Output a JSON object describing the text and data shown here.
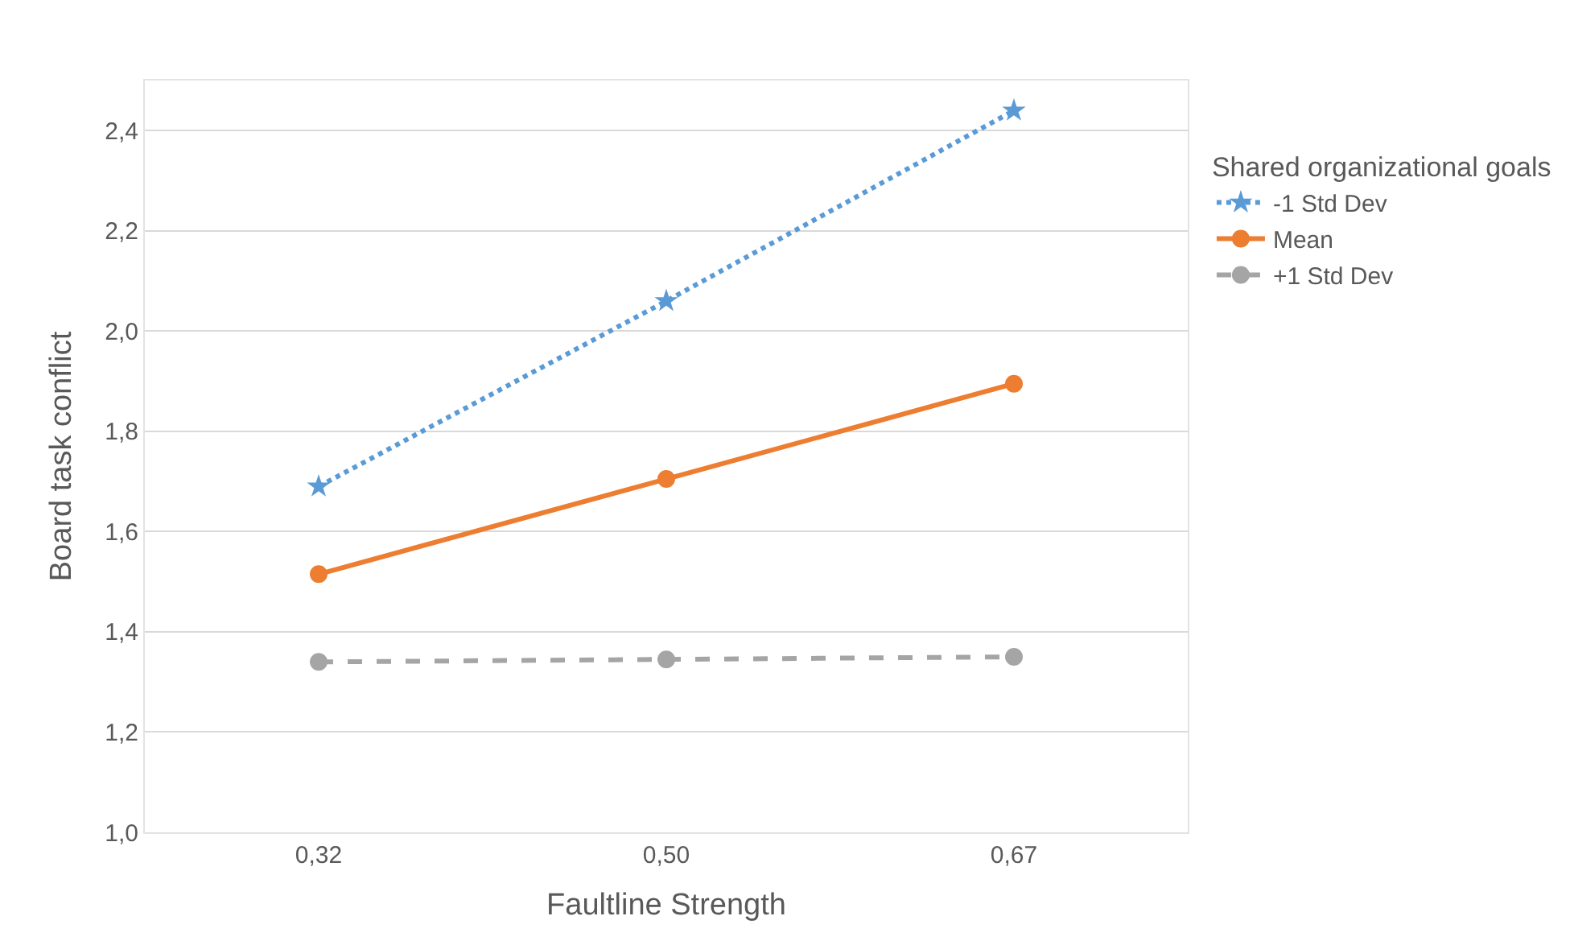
{
  "chart_data": {
    "type": "line",
    "xlabel": "Faultline Strength",
    "ylabel": "Board task conflict",
    "legend_title": "Shared organizational goals",
    "legend": "right",
    "grid": "y",
    "categories": [
      "0,32",
      "0,50",
      "0,67"
    ],
    "ylim": [
      1.0,
      2.5
    ],
    "yticks": [
      {
        "value": 1.0,
        "label": "1,0"
      },
      {
        "value": 1.2,
        "label": "1,2"
      },
      {
        "value": 1.4,
        "label": "1,4"
      },
      {
        "value": 1.6,
        "label": "1,6"
      },
      {
        "value": 1.8,
        "label": "1,8"
      },
      {
        "value": 2.0,
        "label": "2,0"
      },
      {
        "value": 2.2,
        "label": "2,2"
      },
      {
        "value": 2.4,
        "label": "2,4"
      }
    ],
    "series": [
      {
        "name": "-1 Std Dev",
        "color": "#5b9bd5",
        "values": [
          1.69,
          2.06,
          2.44
        ],
        "marker": "star",
        "line_style": "dotted"
      },
      {
        "name": "Mean",
        "color": "#ed7d31",
        "values": [
          1.515,
          1.705,
          1.895
        ],
        "marker": "circle",
        "line_style": "solid"
      },
      {
        "name": "+1 Std Dev",
        "color": "#a5a5a5",
        "values": [
          1.34,
          1.345,
          1.35
        ],
        "marker": "circle",
        "line_style": "dashed"
      }
    ]
  }
}
